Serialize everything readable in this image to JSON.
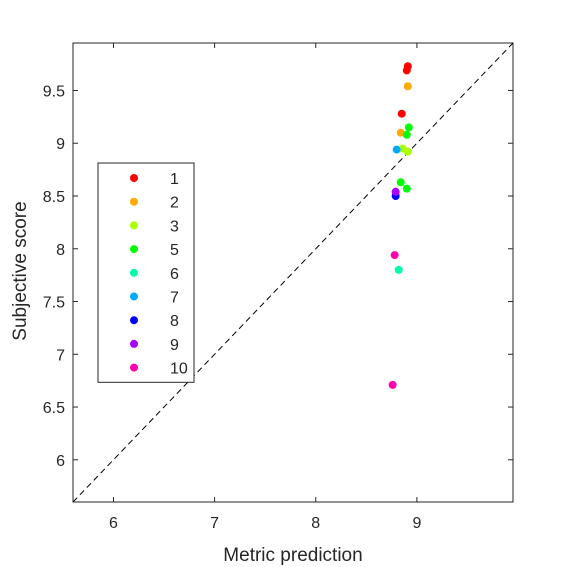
{
  "chart_data": {
    "type": "scatter",
    "title": "",
    "xlabel": "Metric prediction",
    "ylabel": "Subjective score",
    "xlim": [
      5.6,
      9.95
    ],
    "ylim": [
      5.6,
      9.95
    ],
    "xticks": [
      6,
      7,
      8,
      9
    ],
    "yticks": [
      6,
      6.5,
      7,
      7.5,
      8,
      8.5,
      9,
      9.5
    ],
    "grid": false,
    "legend_position": "left",
    "reference_line": "y = x (dashed)",
    "series": [
      {
        "name": "1",
        "color": "#ff0000",
        "points": [
          [
            8.91,
            9.73
          ],
          [
            8.9,
            9.69
          ],
          [
            8.85,
            9.28
          ]
        ]
      },
      {
        "name": "2",
        "color": "#ffaa00",
        "points": [
          [
            8.91,
            9.54
          ],
          [
            8.84,
            9.1
          ]
        ]
      },
      {
        "name": "3",
        "color": "#aaff00",
        "points": [
          [
            8.86,
            8.95
          ],
          [
            8.91,
            8.92
          ]
        ]
      },
      {
        "name": "5",
        "color": "#00ff00",
        "points": [
          [
            8.92,
            9.15
          ],
          [
            8.9,
            9.08
          ],
          [
            8.84,
            8.63
          ],
          [
            8.9,
            8.57
          ]
        ]
      },
      {
        "name": "6",
        "color": "#00ffaa",
        "points": [
          [
            8.82,
            7.8
          ]
        ]
      },
      {
        "name": "7",
        "color": "#00aaff",
        "points": [
          [
            8.8,
            8.94
          ]
        ]
      },
      {
        "name": "8",
        "color": "#0000ff",
        "points": [
          [
            8.79,
            8.5
          ]
        ]
      },
      {
        "name": "9",
        "color": "#aa00ff",
        "points": [
          [
            8.79,
            8.54
          ]
        ]
      },
      {
        "name": "10",
        "color": "#ff00aa",
        "points": [
          [
            8.78,
            7.94
          ],
          [
            8.76,
            6.71
          ]
        ]
      }
    ]
  }
}
